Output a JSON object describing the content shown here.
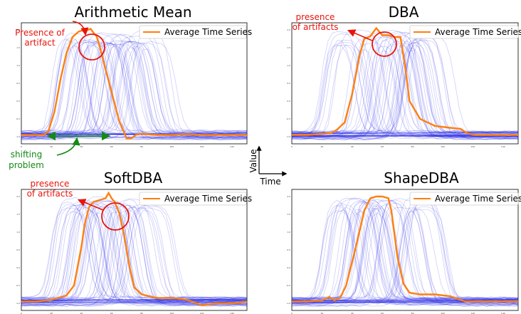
{
  "chart_data": [
    {
      "type": "line",
      "title": "Arithmetic Mean",
      "xlabel": "",
      "ylabel": "",
      "xlim": [
        0,
        150
      ],
      "ylim": [
        -1.2,
        2.2
      ],
      "x_ticks": [
        "0",
        "20",
        "40",
        "60",
        "80",
        "100",
        "120",
        "140"
      ],
      "y_ticks": [
        "-1.0",
        "-0.5",
        "0.0",
        "0.5",
        "1.0",
        "1.5",
        "2.0"
      ],
      "legend": {
        "position": "top-right",
        "entries": [
          "Average Time Series"
        ]
      },
      "series": [
        {
          "name": "Average Time Series",
          "x": [
            0,
            10,
            15,
            18,
            22,
            26,
            30,
            34,
            38,
            40,
            43,
            46,
            48,
            50,
            52,
            55,
            60,
            65,
            70,
            73,
            76,
            80,
            90,
            100,
            110,
            120,
            130,
            140,
            150
          ],
          "y": [
            -0.95,
            -0.95,
            -0.95,
            -0.85,
            -0.3,
            0.6,
            1.35,
            1.8,
            1.95,
            1.98,
            1.98,
            2.03,
            1.92,
            1.82,
            1.55,
            1.05,
            0.25,
            -0.55,
            -1.05,
            -1.05,
            -0.95,
            -0.92,
            -0.95,
            -0.95,
            -0.93,
            -0.95,
            -0.95,
            -0.95,
            -0.95
          ]
        }
      ],
      "annotations": [
        {
          "text": "Presence of artifact",
          "color": "#e8140c"
        },
        {
          "text": "shifting problem",
          "color": "#138a13"
        }
      ]
    },
    {
      "type": "line",
      "title": "DBA",
      "xlabel": "",
      "ylabel": "",
      "xlim": [
        0,
        150
      ],
      "ylim": [
        -1.2,
        2.2
      ],
      "x_ticks": [
        "0",
        "20",
        "40",
        "60",
        "80",
        "100",
        "120",
        "140"
      ],
      "y_ticks": [
        "-1.0",
        "-0.5",
        "0.0",
        "0.5",
        "1.0",
        "1.5",
        "2.0"
      ],
      "legend": {
        "position": "top-right",
        "entries": [
          "Average Time Series"
        ]
      },
      "series": [
        {
          "name": "Average Time Series",
          "x": [
            0,
            10,
            20,
            26,
            30,
            35,
            40,
            45,
            48,
            52,
            56,
            60,
            64,
            68,
            72,
            75,
            78,
            85,
            95,
            105,
            112,
            116,
            118,
            122,
            130,
            140,
            150
          ],
          "y": [
            -0.95,
            -0.95,
            -0.92,
            -0.9,
            -0.8,
            -0.6,
            0.2,
            1.3,
            1.75,
            1.82,
            2.05,
            1.85,
            1.85,
            1.8,
            1.8,
            1.0,
            0.0,
            -0.5,
            -0.7,
            -0.75,
            -0.78,
            -0.9,
            -0.92,
            -0.95,
            -0.95,
            -0.95,
            -0.95
          ]
        }
      ],
      "annotations": [
        {
          "text": "presence of artifacts",
          "color": "#e8140c"
        }
      ]
    },
    {
      "type": "line",
      "title": "SoftDBA",
      "xlabel": "",
      "ylabel": "",
      "xlim": [
        0,
        150
      ],
      "ylim": [
        -1.2,
        2.2
      ],
      "x_ticks": [
        "0",
        "20",
        "40",
        "60",
        "80",
        "100",
        "120",
        "140"
      ],
      "y_ticks": [
        "-1.0",
        "-0.5",
        "0.0",
        "0.5",
        "1.0",
        "1.5",
        "2.0"
      ],
      "legend": {
        "position": "top-right",
        "entries": [
          "Average Time Series"
        ]
      },
      "series": [
        {
          "name": "Average Time Series",
          "x": [
            0,
            10,
            20,
            30,
            35,
            40,
            42,
            45,
            48,
            52,
            56,
            58,
            60,
            62,
            65,
            68,
            72,
            75,
            80,
            90,
            100,
            110,
            120,
            130,
            140,
            150
          ],
          "y": [
            -0.95,
            -0.95,
            -0.9,
            -0.78,
            -0.5,
            0.6,
            1.2,
            1.7,
            1.85,
            1.9,
            1.95,
            2.1,
            1.95,
            1.85,
            1.55,
            1.0,
            0.0,
            -0.55,
            -0.75,
            -0.85,
            -0.85,
            -0.9,
            -1.05,
            -1.0,
            -1.0,
            -0.95
          ]
        }
      ],
      "annotations": [
        {
          "text": "presence of artifacts",
          "color": "#e8140c"
        }
      ]
    },
    {
      "type": "line",
      "title": "ShapeDBA",
      "xlabel": "",
      "ylabel": "",
      "xlim": [
        0,
        150
      ],
      "ylim": [
        -1.2,
        2.2
      ],
      "x_ticks": [
        "0",
        "20",
        "40",
        "60",
        "80",
        "100",
        "120",
        "140"
      ],
      "y_ticks": [
        "-1.0",
        "-0.5",
        "0.0",
        "0.5",
        "1.0",
        "1.5",
        "2.0"
      ],
      "legend": {
        "position": "top-right",
        "entries": [
          "Average Time Series"
        ]
      },
      "series": [
        {
          "name": "Average Time Series",
          "x": [
            0,
            10,
            20,
            25,
            28,
            32,
            36,
            42,
            48,
            52,
            56,
            60,
            64,
            66,
            70,
            74,
            78,
            85,
            95,
            105,
            115,
            120,
            130,
            140,
            150
          ],
          "y": [
            -0.95,
            -0.95,
            -0.92,
            -0.82,
            -0.92,
            -0.85,
            -0.5,
            0.5,
            1.6,
            1.95,
            2.0,
            2.0,
            1.95,
            1.6,
            0.3,
            -0.45,
            -0.7,
            -0.75,
            -0.75,
            -0.8,
            -0.95,
            -0.95,
            -0.95,
            -0.95,
            -0.95
          ]
        }
      ]
    }
  ],
  "axis_glyph": {
    "value_label": "Value",
    "time_label": "Time"
  }
}
